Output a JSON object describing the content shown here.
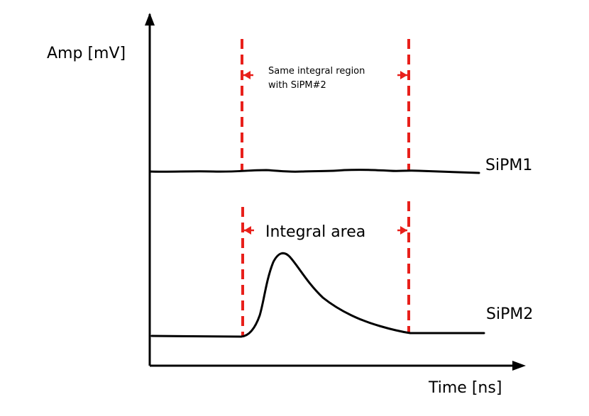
{
  "axes": {
    "y_label": "Amp [mV]",
    "x_label": "Time [ns]"
  },
  "traces": {
    "sipm1_label": "SiPM1",
    "sipm2_label": "SiPM2"
  },
  "annotations": {
    "top_region_line1": "Same integral region",
    "top_region_line2": "with SiPM#2",
    "bottom_region": "Integral area"
  },
  "colors": {
    "marker": "#e8201b",
    "ink": "#000000"
  }
}
